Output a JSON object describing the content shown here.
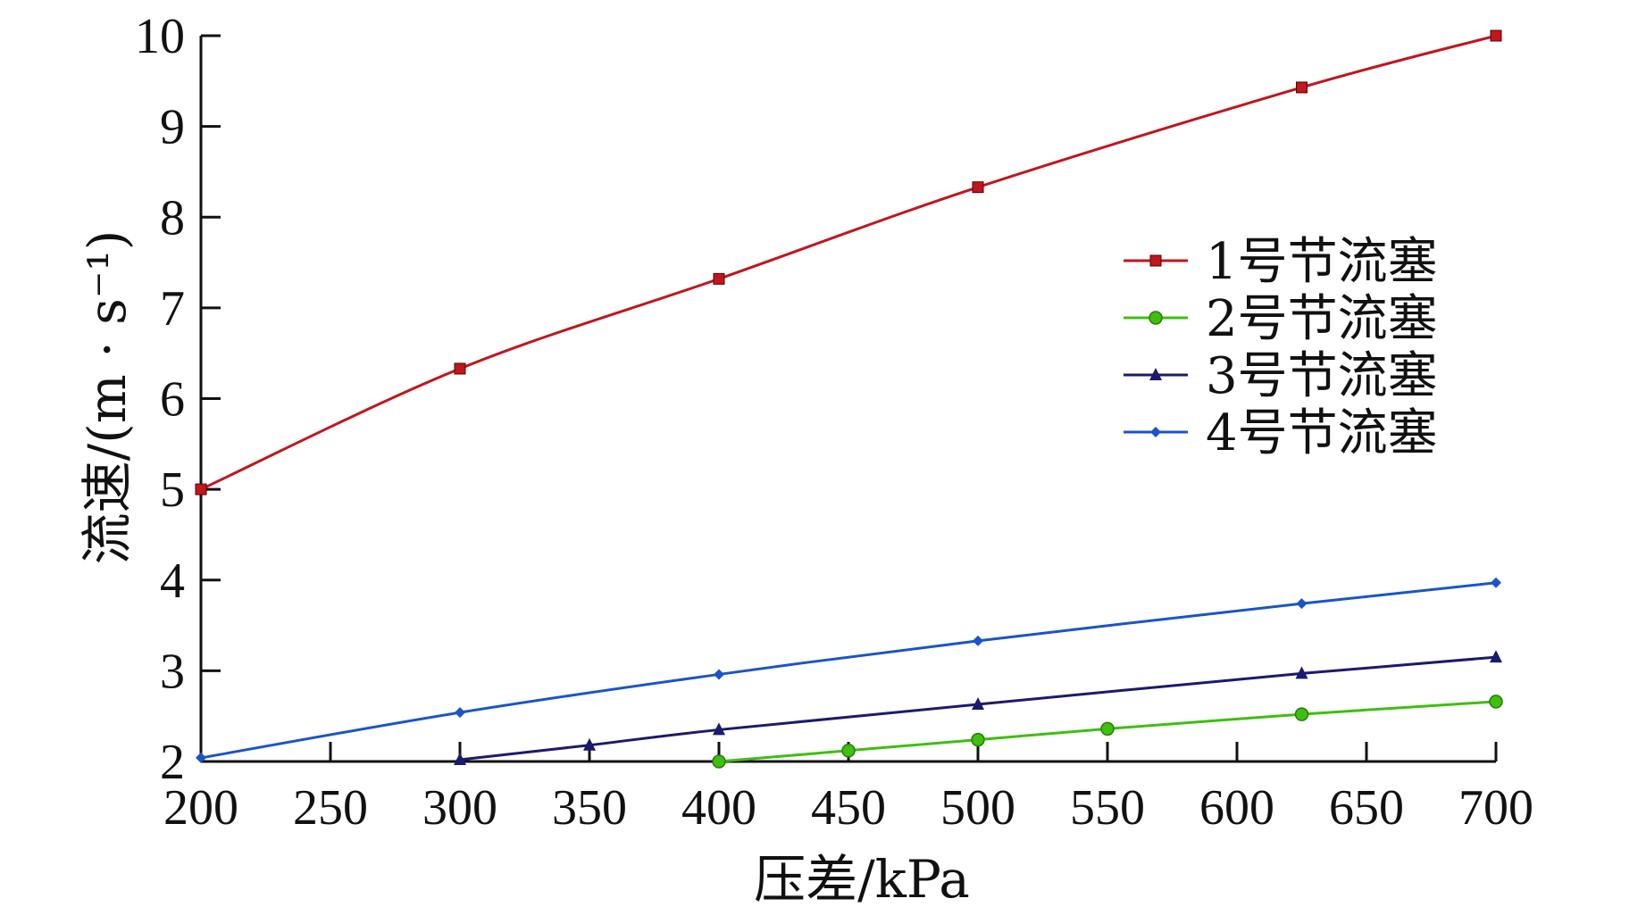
{
  "chart_data": {
    "type": "line",
    "xlabel": "压差/kPa",
    "ylabel": "流速/(m · s⁻¹)",
    "xlim": [
      200,
      700
    ],
    "ylim": [
      2,
      10
    ],
    "x_ticks": [
      "200",
      "250",
      "300",
      "350",
      "400",
      "450",
      "500",
      "550",
      "600",
      "650",
      "700"
    ],
    "y_ticks": [
      "2",
      "3",
      "4",
      "5",
      "6",
      "7",
      "8",
      "9",
      "10"
    ],
    "grid": false,
    "legend_position": "right",
    "series": [
      {
        "name": "1号节流塞",
        "color": "#c0161e",
        "marker": "square",
        "points": [
          [
            200,
            5.0
          ],
          [
            300,
            6.33
          ],
          [
            400,
            7.32
          ],
          [
            500,
            8.33
          ],
          [
            625,
            9.43
          ],
          [
            700,
            10.0
          ]
        ]
      },
      {
        "name": "2号节流塞",
        "color": "#3fbf10",
        "marker": "circle",
        "points": [
          [
            400,
            2.0
          ],
          [
            450,
            2.12
          ],
          [
            500,
            2.24
          ],
          [
            550,
            2.36
          ],
          [
            625,
            2.52
          ],
          [
            700,
            2.66
          ]
        ]
      },
      {
        "name": "3号节流塞",
        "color": "#1b1a6e",
        "marker": "triangle",
        "points": [
          [
            300,
            2.02
          ],
          [
            350,
            2.18
          ],
          [
            400,
            2.35
          ],
          [
            500,
            2.63
          ],
          [
            625,
            2.97
          ],
          [
            700,
            3.15
          ]
        ]
      },
      {
        "name": "4号节流塞",
        "color": "#1a54c8",
        "marker": "diamond",
        "points": [
          [
            200,
            2.04
          ],
          [
            300,
            2.54
          ],
          [
            400,
            2.96
          ],
          [
            500,
            3.33
          ],
          [
            625,
            3.74
          ],
          [
            700,
            3.97
          ]
        ]
      }
    ]
  }
}
